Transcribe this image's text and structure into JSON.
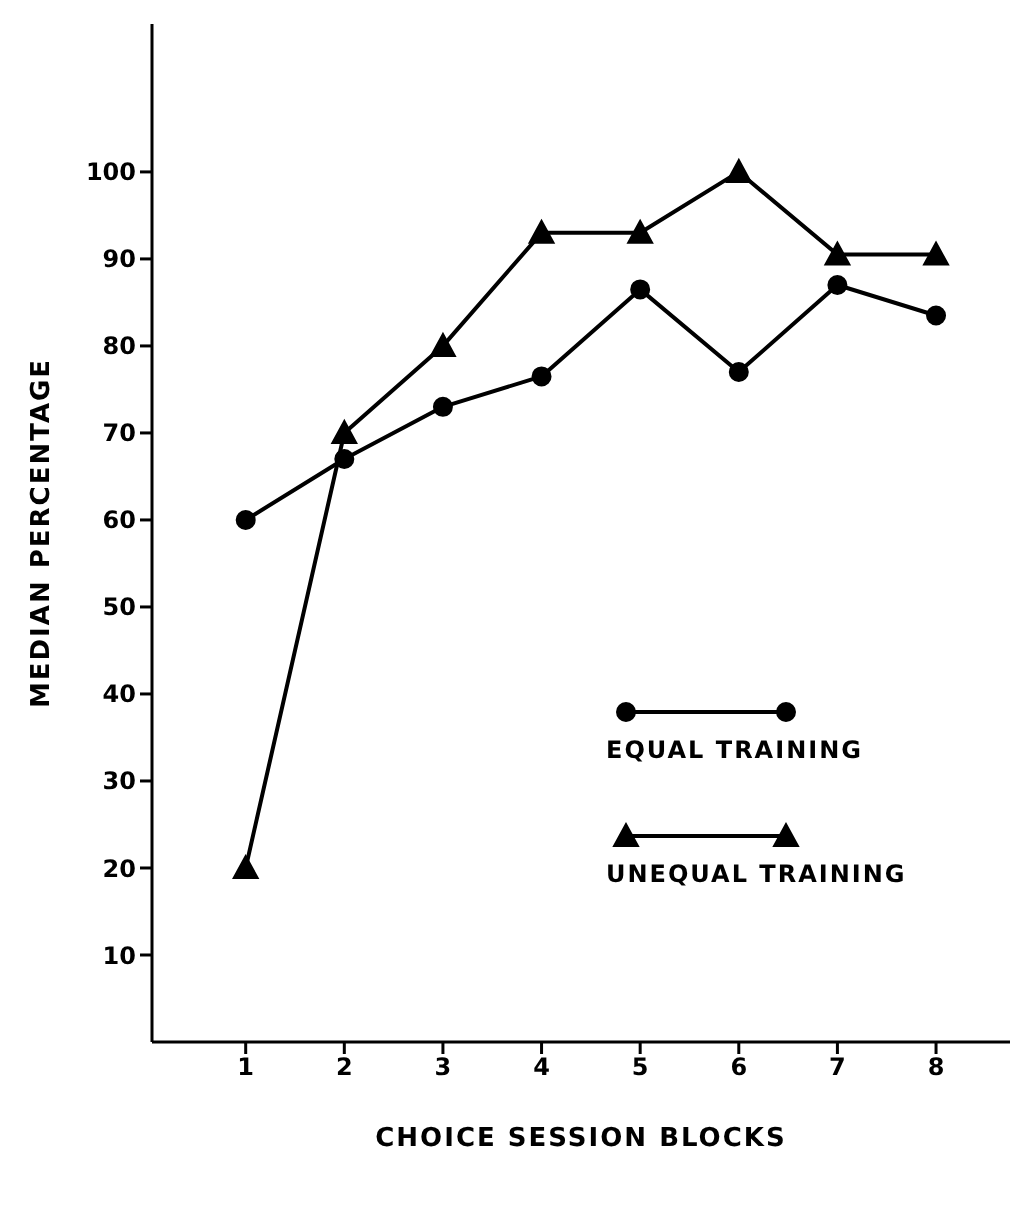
{
  "chart_data": {
    "type": "line",
    "xlabel": "CHOICE SESSION BLOCKS",
    "ylabel": "MEDIAN PERCENTAGE",
    "x": [
      1,
      2,
      3,
      4,
      5,
      6,
      7,
      8
    ],
    "xlim": [
      0.05,
      8.75
    ],
    "xticks": [
      1,
      2,
      3,
      4,
      5,
      6,
      7,
      8
    ],
    "ylim": [
      0,
      117
    ],
    "yticks": [
      10,
      20,
      30,
      40,
      50,
      60,
      70,
      80,
      90,
      100
    ],
    "grid": false,
    "legend": "right",
    "line_style": "solid",
    "series": [
      {
        "name": "EQUAL TRAINING",
        "color": "#000000",
        "marker": "circle",
        "values": [
          60,
          67,
          73,
          76.5,
          86.5,
          77,
          87,
          83.5
        ]
      },
      {
        "name": "UNEQUAL TRAINING",
        "color": "#000000",
        "marker": "triangle",
        "values": [
          20,
          70,
          80,
          93,
          93,
          100,
          90.5,
          90.5
        ]
      }
    ]
  }
}
